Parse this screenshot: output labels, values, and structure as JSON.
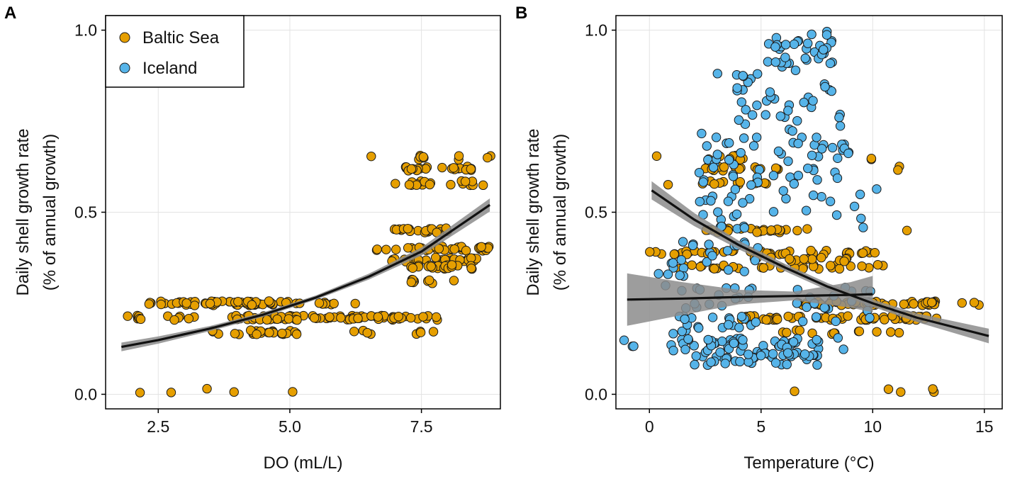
{
  "colors": {
    "baltic": "#E69F00",
    "iceland": "#56B4E9",
    "fit_line": "#111111",
    "ribbon": "#8c8c8c",
    "grid": "#e3e3e3",
    "point_edge": "#1a1a1a"
  },
  "legend": {
    "items": [
      {
        "label": "Baltic Sea",
        "color": "#E69F00"
      },
      {
        "label": "Iceland",
        "color": "#56B4E9"
      }
    ]
  },
  "chart_data": [
    {
      "panel": "A",
      "type": "scatter",
      "xlabel": "DO (mL/L)",
      "ylabel": [
        "Daily shell growth rate",
        "(% of annual growth)"
      ],
      "xlim": [
        1.5,
        9.0
      ],
      "ylim": [
        -0.04,
        1.04
      ],
      "xticks": [
        2.5,
        5.0,
        7.5
      ],
      "xtick_labels": [
        "2.5",
        "5.0",
        "7.5"
      ],
      "yticks": [
        0.0,
        0.5,
        1.0
      ],
      "ytick_labels": [
        "0.0",
        "0.5",
        "1.0"
      ],
      "legend_position": "top-left",
      "series": [
        {
          "name": "Baltic Sea",
          "color": "#E69F00",
          "clusters": [
            {
              "y": 0.21,
              "xmin": 1.85,
              "xmax": 2.25,
              "n": 7
            },
            {
              "y": 0.25,
              "xmin": 2.3,
              "xmax": 5.2,
              "n": 60
            },
            {
              "y": 0.25,
              "xmin": 5.5,
              "xmax": 6.0,
              "n": 6
            },
            {
              "y": 0.21,
              "xmin": 2.6,
              "xmax": 3.2,
              "n": 6
            },
            {
              "y": 0.21,
              "xmin": 3.8,
              "xmax": 7.9,
              "n": 80
            },
            {
              "y": 0.17,
              "xmin": 3.5,
              "xmax": 4.7,
              "n": 18
            },
            {
              "y": 0.17,
              "xmin": 4.8,
              "xmax": 5.3,
              "n": 8
            },
            {
              "y": 0.17,
              "xmin": 6.2,
              "xmax": 6.6,
              "n": 4
            },
            {
              "y": 0.17,
              "xmin": 7.4,
              "xmax": 7.8,
              "n": 4
            },
            {
              "y": 0.21,
              "xmin": 6.2,
              "xmax": 6.5,
              "n": 3
            },
            {
              "y": 0.25,
              "xmin": 6.2,
              "xmax": 6.3,
              "n": 1
            },
            {
              "y": 0.01,
              "xmin": 2.15,
              "xmax": 2.2,
              "n": 1
            },
            {
              "y": 0.01,
              "xmin": 2.7,
              "xmax": 2.75,
              "n": 1
            },
            {
              "y": 0.01,
              "xmin": 3.4,
              "xmax": 3.45,
              "n": 1
            },
            {
              "y": 0.01,
              "xmin": 3.9,
              "xmax": 3.95,
              "n": 1
            },
            {
              "y": 0.01,
              "xmin": 5.05,
              "xmax": 5.1,
              "n": 1
            },
            {
              "y": 0.65,
              "xmin": 6.5,
              "xmax": 6.55,
              "n": 1
            },
            {
              "y": 0.65,
              "xmin": 7.3,
              "xmax": 7.8,
              "n": 5
            },
            {
              "y": 0.65,
              "xmin": 8.1,
              "xmax": 8.3,
              "n": 2
            },
            {
              "y": 0.65,
              "xmin": 8.7,
              "xmax": 8.85,
              "n": 2
            },
            {
              "y": 0.62,
              "xmin": 7.0,
              "xmax": 8.5,
              "n": 22
            },
            {
              "y": 0.58,
              "xmin": 7.0,
              "xmax": 7.7,
              "n": 12
            },
            {
              "y": 0.58,
              "xmin": 8.0,
              "xmax": 8.8,
              "n": 10
            },
            {
              "y": 0.45,
              "xmin": 6.9,
              "xmax": 8.1,
              "n": 22
            },
            {
              "y": 0.4,
              "xmin": 6.6,
              "xmax": 6.9,
              "n": 3
            },
            {
              "y": 0.4,
              "xmin": 7.0,
              "xmax": 8.8,
              "n": 35
            },
            {
              "y": 0.37,
              "xmin": 6.8,
              "xmax": 8.6,
              "n": 30
            },
            {
              "y": 0.35,
              "xmin": 7.3,
              "xmax": 8.6,
              "n": 22
            },
            {
              "y": 0.31,
              "xmin": 7.3,
              "xmax": 7.9,
              "n": 8
            },
            {
              "y": 0.31,
              "xmin": 8.1,
              "xmax": 8.2,
              "n": 1
            }
          ]
        }
      ],
      "fits": [
        {
          "name": "Baltic Sea fit",
          "x": [
            1.8,
            2.5,
            3.5,
            4.5,
            5.5,
            6.5,
            7.5,
            8.8
          ],
          "y": [
            0.13,
            0.149,
            0.181,
            0.219,
            0.266,
            0.323,
            0.392,
            0.52
          ],
          "se": [
            0.012,
            0.01,
            0.007,
            0.006,
            0.006,
            0.008,
            0.011,
            0.018
          ]
        }
      ]
    },
    {
      "panel": "B",
      "type": "scatter",
      "xlabel": "Temperature (°C)",
      "ylabel": [
        "Daily shell growth rate",
        "(% of annual growth)"
      ],
      "xlim": [
        -1.5,
        15.8
      ],
      "ylim": [
        -0.04,
        1.04
      ],
      "xticks": [
        0,
        5,
        10,
        15
      ],
      "xtick_labels": [
        "0",
        "5",
        "10",
        "15"
      ],
      "yticks": [
        0.0,
        0.5,
        1.0
      ],
      "ytick_labels": [
        "0.0",
        "0.5",
        "1.0"
      ],
      "series": [
        {
          "name": "Baltic Sea",
          "color": "#E69F00",
          "clusters": [
            {
              "y": 0.39,
              "xmin": 0.0,
              "xmax": 0.6,
              "n": 3
            },
            {
              "y": 0.65,
              "xmin": 0.3,
              "xmax": 0.35,
              "n": 1
            },
            {
              "y": 0.58,
              "xmin": 0.8,
              "xmax": 0.85,
              "n": 1
            },
            {
              "y": 0.39,
              "xmin": 1.0,
              "xmax": 10.3,
              "n": 40
            },
            {
              "y": 0.35,
              "xmin": 1.2,
              "xmax": 10.5,
              "n": 35
            },
            {
              "y": 0.37,
              "xmin": 4.5,
              "xmax": 9.0,
              "n": 15
            },
            {
              "y": 0.45,
              "xmin": 2.5,
              "xmax": 7.5,
              "n": 25
            },
            {
              "y": 0.58,
              "xmin": 2.0,
              "xmax": 5.5,
              "n": 12
            },
            {
              "y": 0.62,
              "xmin": 2.5,
              "xmax": 6.0,
              "n": 18
            },
            {
              "y": 0.65,
              "xmin": 2.5,
              "xmax": 4.8,
              "n": 8
            },
            {
              "y": 0.25,
              "xmin": 6.5,
              "xmax": 13.0,
              "n": 55
            },
            {
              "y": 0.25,
              "xmin": 13.8,
              "xmax": 15.2,
              "n": 3
            },
            {
              "y": 0.21,
              "xmin": 4.0,
              "xmax": 13.0,
              "n": 60
            },
            {
              "y": 0.17,
              "xmin": 5.5,
              "xmax": 9.5,
              "n": 10
            },
            {
              "y": 0.17,
              "xmin": 10.0,
              "xmax": 12.0,
              "n": 3
            },
            {
              "y": 0.65,
              "xmin": 9.9,
              "xmax": 10.0,
              "n": 2
            },
            {
              "y": 0.62,
              "xmin": 11.1,
              "xmax": 11.25,
              "n": 2
            },
            {
              "y": 0.45,
              "xmin": 11.5,
              "xmax": 11.55,
              "n": 1
            },
            {
              "y": 0.01,
              "xmin": 6.45,
              "xmax": 6.5,
              "n": 1
            },
            {
              "y": 0.01,
              "xmin": 10.7,
              "xmax": 10.75,
              "n": 1
            },
            {
              "y": 0.01,
              "xmin": 11.25,
              "xmax": 11.3,
              "n": 1
            },
            {
              "y": 0.01,
              "xmin": 12.65,
              "xmax": 12.75,
              "n": 2
            }
          ]
        },
        {
          "name": "Iceland",
          "color": "#56B4E9",
          "clusters": [
            {
              "ymin": 0.13,
              "ymax": 0.16,
              "xmin": -1.2,
              "xmax": -0.6,
              "n": 3
            },
            {
              "ymin": 0.12,
              "ymax": 0.2,
              "xmin": 0.2,
              "xmax": 2.0,
              "n": 12
            },
            {
              "ymin": 0.08,
              "ymax": 0.16,
              "xmin": 2.0,
              "xmax": 7.6,
              "n": 85
            },
            {
              "ymin": 0.18,
              "ymax": 0.42,
              "xmin": 0.8,
              "xmax": 5.0,
              "n": 55
            },
            {
              "ymin": 0.2,
              "ymax": 0.3,
              "xmin": 6.5,
              "xmax": 10.0,
              "n": 20
            },
            {
              "ymin": 0.45,
              "ymax": 0.72,
              "xmin": 2.2,
              "xmax": 5.0,
              "n": 45
            },
            {
              "ymin": 0.48,
              "ymax": 0.72,
              "xmin": 5.5,
              "xmax": 9.0,
              "n": 40
            },
            {
              "ymin": 0.72,
              "ymax": 0.9,
              "xmin": 3.8,
              "xmax": 8.6,
              "n": 40
            },
            {
              "ymin": 0.9,
              "ymax": 1.0,
              "xmin": 5.3,
              "xmax": 8.5,
              "n": 35
            },
            {
              "ymin": 0.88,
              "ymax": 0.9,
              "xmin": 2.9,
              "xmax": 3.1,
              "n": 1
            },
            {
              "ymin": 0.38,
              "ymax": 0.6,
              "xmin": 9.0,
              "xmax": 10.2,
              "n": 5
            },
            {
              "ymin": 0.12,
              "ymax": 0.16,
              "xmin": 8.4,
              "xmax": 8.8,
              "n": 2
            },
            {
              "ymin": 0.28,
              "ymax": 0.34,
              "xmin": 0.3,
              "xmax": 1.5,
              "n": 4
            }
          ]
        }
      ],
      "fits": [
        {
          "name": "Baltic Sea fit",
          "x": [
            0.1,
            2.0,
            4.0,
            6.0,
            8.0,
            10.0,
            12.0,
            15.2
          ],
          "y": [
            0.56,
            0.48,
            0.41,
            0.35,
            0.295,
            0.25,
            0.21,
            0.16
          ],
          "se": [
            0.025,
            0.018,
            0.012,
            0.01,
            0.01,
            0.01,
            0.012,
            0.02
          ]
        },
        {
          "name": "Iceland fit",
          "x": [
            -1.0,
            1.5,
            4.0,
            6.5,
            9.0,
            10.0
          ],
          "y": [
            0.26,
            0.263,
            0.267,
            0.27,
            0.273,
            0.275
          ],
          "se": [
            0.072,
            0.045,
            0.02,
            0.012,
            0.035,
            0.05
          ]
        }
      ]
    }
  ]
}
